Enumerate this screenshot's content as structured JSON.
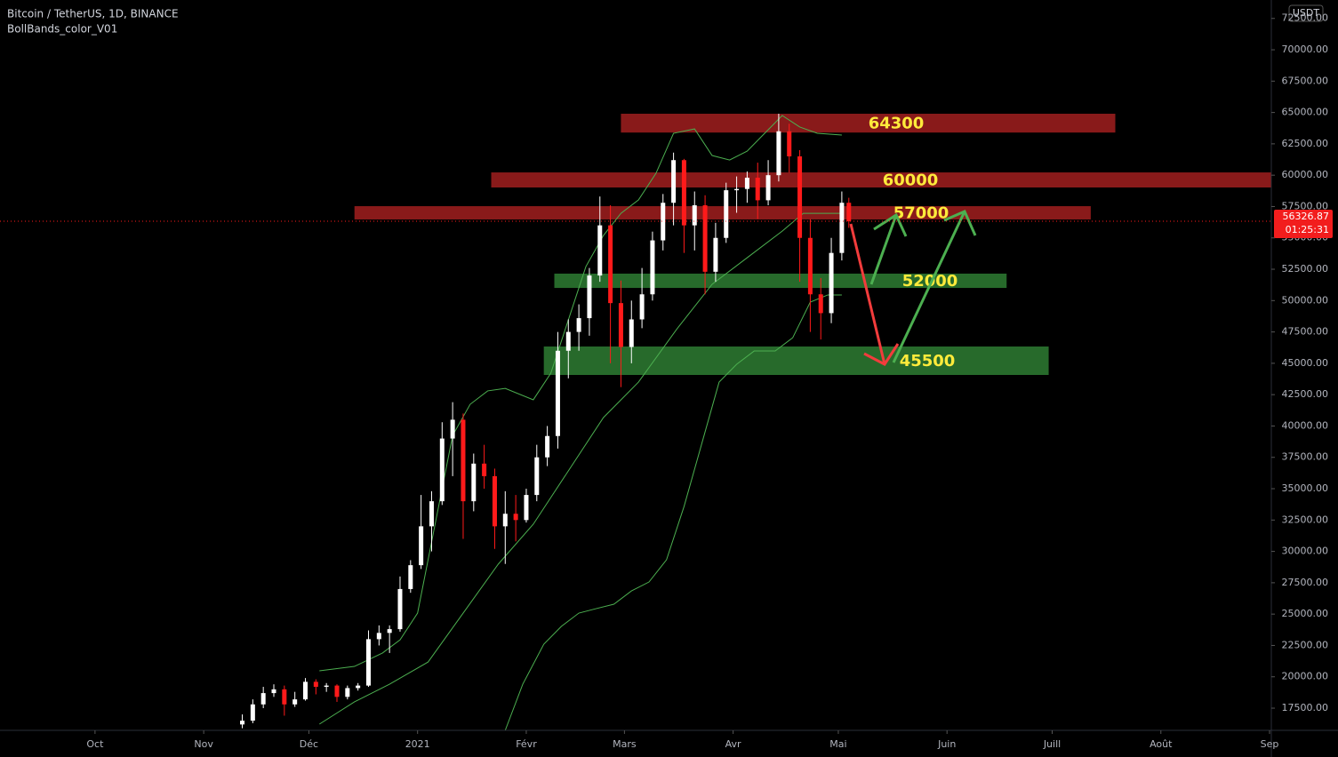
{
  "chart_data": {
    "type": "candlestick",
    "title": "Bitcoin / TetherUS, 1D, BINANCE",
    "subtitle": "BollBands_color_V01",
    "currency": "USDT",
    "last_price": 56326.87,
    "countdown": "01:25:31",
    "up_color": "#ffffff",
    "down_color": "#ff1a1a",
    "ylim": [
      15730,
      73970
    ],
    "yticks": [
      {
        "value": 17500,
        "label": "17500.00"
      },
      {
        "value": 20000,
        "label": "20000.00"
      },
      {
        "value": 22500,
        "label": "22500.00"
      },
      {
        "value": 25000,
        "label": "25000.00"
      },
      {
        "value": 27500,
        "label": "27500.00"
      },
      {
        "value": 30000,
        "label": "30000.00"
      },
      {
        "value": 32500,
        "label": "32500.00"
      },
      {
        "value": 35000,
        "label": "35000.00"
      },
      {
        "value": 37500,
        "label": "37500.00"
      },
      {
        "value": 40000,
        "label": "40000.00"
      },
      {
        "value": 42500,
        "label": "42500.00"
      },
      {
        "value": 45000,
        "label": "45000.00"
      },
      {
        "value": 47500,
        "label": "47500.00"
      },
      {
        "value": 50000,
        "label": "50000.00"
      },
      {
        "value": 52500,
        "label": "52500.00"
      },
      {
        "value": 55000,
        "label": "55000.00"
      },
      {
        "value": 57500,
        "label": "57500.00"
      },
      {
        "value": 60000,
        "label": "60000.00"
      },
      {
        "value": 62500,
        "label": "62500.00"
      },
      {
        "value": 65000,
        "label": "65000.00"
      },
      {
        "value": 67500,
        "label": "67500.00"
      },
      {
        "value": 70000,
        "label": "70000.00"
      },
      {
        "value": 72500,
        "label": "72500.00"
      }
    ],
    "xlim": [
      -27.1,
      335.5
    ],
    "xticks": [
      {
        "value": 0,
        "label": "Oct"
      },
      {
        "value": 31,
        "label": "Nov"
      },
      {
        "value": 61,
        "label": "Déc"
      },
      {
        "value": 92,
        "label": "2021"
      },
      {
        "value": 123,
        "label": "Févr"
      },
      {
        "value": 151,
        "label": "Mars"
      },
      {
        "value": 182,
        "label": "Avr"
      },
      {
        "value": 212,
        "label": "Mai"
      },
      {
        "value": 243,
        "label": "Juin"
      },
      {
        "value": 273,
        "label": "Juill"
      },
      {
        "value": 304,
        "label": "Août"
      },
      {
        "value": 335,
        "label": "Sep"
      }
    ],
    "candles": {
      "x": [
        42,
        45,
        48,
        51,
        54,
        57,
        60,
        63,
        66,
        69,
        72,
        75,
        78,
        81,
        84,
        87,
        90,
        93,
        96,
        99,
        102,
        105,
        108,
        111,
        114,
        117,
        120,
        123,
        126,
        129,
        132,
        135,
        138,
        141,
        144,
        147,
        150,
        153,
        156,
        159,
        162,
        165,
        168,
        171,
        174,
        177,
        180,
        183,
        186,
        189,
        192,
        195,
        198,
        201,
        204,
        207,
        210,
        213,
        215
      ],
      "open": [
        16200,
        16500,
        17800,
        18700,
        19000,
        17800,
        18200,
        19600,
        19200,
        19300,
        18400,
        19100,
        19300,
        23000,
        23500,
        23800,
        27000,
        28900,
        32000,
        34000,
        39000,
        40500,
        34000,
        37000,
        36000,
        32000,
        33000,
        32500,
        34500,
        37500,
        39200,
        46000,
        47500,
        48600,
        52000,
        56000,
        49800,
        46300,
        48500,
        50500,
        54800,
        57800,
        61200,
        56000,
        57600,
        52300,
        55000,
        58800,
        58900,
        59800,
        58000,
        60000,
        63500,
        61500,
        55000,
        50500,
        49000,
        53800,
        57800
      ],
      "high": [
        17000,
        18200,
        19200,
        19400,
        19300,
        18800,
        19900,
        19800,
        19500,
        19400,
        19300,
        19500,
        23700,
        24100,
        24100,
        28000,
        29300,
        34500,
        34800,
        40300,
        41900,
        41000,
        37800,
        38500,
        36600,
        34800,
        34500,
        35000,
        38500,
        40000,
        47500,
        48500,
        49700,
        52600,
        58300,
        57600,
        51600,
        50000,
        52600,
        55500,
        58500,
        61800,
        61300,
        58700,
        58400,
        56200,
        59400,
        59900,
        60300,
        61000,
        61200,
        64900,
        64100,
        62000,
        56500,
        51800,
        55000,
        58700,
        58200
      ],
      "low": [
        15900,
        16300,
        17500,
        18400,
        16900,
        17600,
        18100,
        18600,
        18800,
        18000,
        18200,
        18900,
        19200,
        22500,
        21900,
        23600,
        26700,
        28600,
        30000,
        33700,
        36000,
        31000,
        33200,
        35000,
        30200,
        29000,
        30800,
        32300,
        34000,
        36800,
        38200,
        43800,
        46000,
        47200,
        51500,
        45000,
        43100,
        45000,
        47800,
        50000,
        54000,
        56000,
        53800,
        54000,
        50500,
        51500,
        54600,
        57000,
        57800,
        56500,
        57600,
        59500,
        60200,
        51500,
        47500,
        46900,
        48200,
        53200,
        55800
      ],
      "close": [
        16500,
        17800,
        18700,
        19000,
        17800,
        18200,
        19600,
        19200,
        19300,
        18400,
        19100,
        19300,
        23000,
        23500,
        23800,
        27000,
        28900,
        32000,
        34000,
        39000,
        40500,
        34000,
        37000,
        36000,
        32000,
        33000,
        32500,
        34500,
        37500,
        39200,
        46000,
        47500,
        48600,
        52000,
        56000,
        49800,
        46300,
        48500,
        50500,
        54800,
        57800,
        61200,
        56000,
        57600,
        52300,
        55000,
        58800,
        58900,
        59800,
        58000,
        60000,
        63500,
        61500,
        55000,
        50500,
        49000,
        53800,
        57800,
        56326.87
      ]
    },
    "bands": [
      {
        "name": "upper",
        "color": "#4caf50",
        "x": [
          64,
          74,
          82,
          87,
          92,
          97,
          102,
          107,
          112,
          117,
          125,
          130,
          135,
          140,
          145,
          150,
          155,
          160,
          165,
          171,
          176,
          181,
          186,
          191,
          196,
          201,
          206,
          213
        ],
        "values": [
          20476,
          20830,
          21900,
          22950,
          25080,
          32170,
          39250,
          41730,
          42800,
          43000,
          42090,
          44210,
          48460,
          52710,
          55190,
          56960,
          58030,
          60150,
          63340,
          63690,
          61570,
          61210,
          61920,
          63340,
          64760,
          63840,
          63340,
          63200
        ]
      },
      {
        "name": "basis",
        "color": "#4caf50",
        "x": [
          64,
          74,
          84,
          95,
          105,
          115,
          125,
          135,
          145,
          155,
          166,
          176,
          186,
          196,
          202,
          213
        ],
        "values": [
          16225,
          18000,
          19410,
          21180,
          25080,
          28980,
          32170,
          36420,
          40670,
          43500,
          47750,
          51300,
          53420,
          55540,
          56960,
          56960
        ]
      },
      {
        "name": "lower",
        "color": "#4caf50",
        "x": [
          117,
          122,
          128,
          133,
          138,
          143,
          148,
          153,
          158,
          163,
          168,
          173,
          178,
          183,
          188,
          194,
          199,
          204,
          209,
          213
        ],
        "values": [
          15730,
          19410,
          22600,
          24020,
          25080,
          25440,
          25790,
          26850,
          27560,
          29330,
          33580,
          38540,
          43500,
          44920,
          45980,
          45980,
          47040,
          49880,
          50450,
          50450
        ]
      }
    ],
    "zones": [
      {
        "label": "64300",
        "color": "#a11f1f",
        "x": [
          150,
          291
        ],
        "y": [
          63400,
          64900
        ]
      },
      {
        "label": "60000",
        "color": "#a11f1f",
        "x": [
          113,
          336
        ],
        "y": [
          59020,
          60220
        ]
      },
      {
        "label": "57000",
        "color": "#a11f1f",
        "x": [
          74,
          284
        ],
        "y": [
          56470,
          57530
        ]
      },
      {
        "label": "52000",
        "color": "#2e7d32",
        "x": [
          131,
          260
        ],
        "y": [
          51010,
          52150
        ]
      },
      {
        "label": "45500",
        "color": "#2e7d32",
        "x": [
          128,
          272
        ],
        "y": [
          44070,
          46340
        ]
      }
    ]
  }
}
